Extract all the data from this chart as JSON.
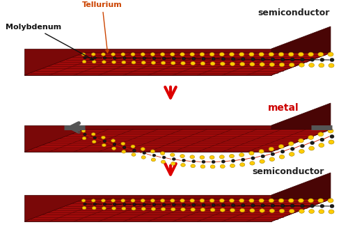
{
  "bg_color": "#ffffff",
  "plate_color": "#7a0808",
  "plate_top_color": "#9a1010",
  "plate_right_color": "#500505",
  "plate_grid_color": "#5a0505",
  "tel_color": "#ffcc00",
  "tel_edge_color": "#aa8800",
  "mo_color": "#1a1a1a",
  "mo_edge_color": "#000000",
  "red_wire_color": "#cc2200",
  "arrow_red": "#dd0000",
  "stretch_color": "#555555",
  "panel1_label": "semiconductor",
  "panel1_label_color": "#222222",
  "panel2_label": "metal",
  "panel2_label_color": "#cc0000",
  "panel3_label": "semiconductor",
  "panel3_label_color": "#222222",
  "mo_text": "Molybdenum",
  "te_text": "Tellurium",
  "mo_text_color": "#111111",
  "te_text_color": "#cc4400",
  "figw": 5.0,
  "figh": 3.59,
  "dpi": 100
}
